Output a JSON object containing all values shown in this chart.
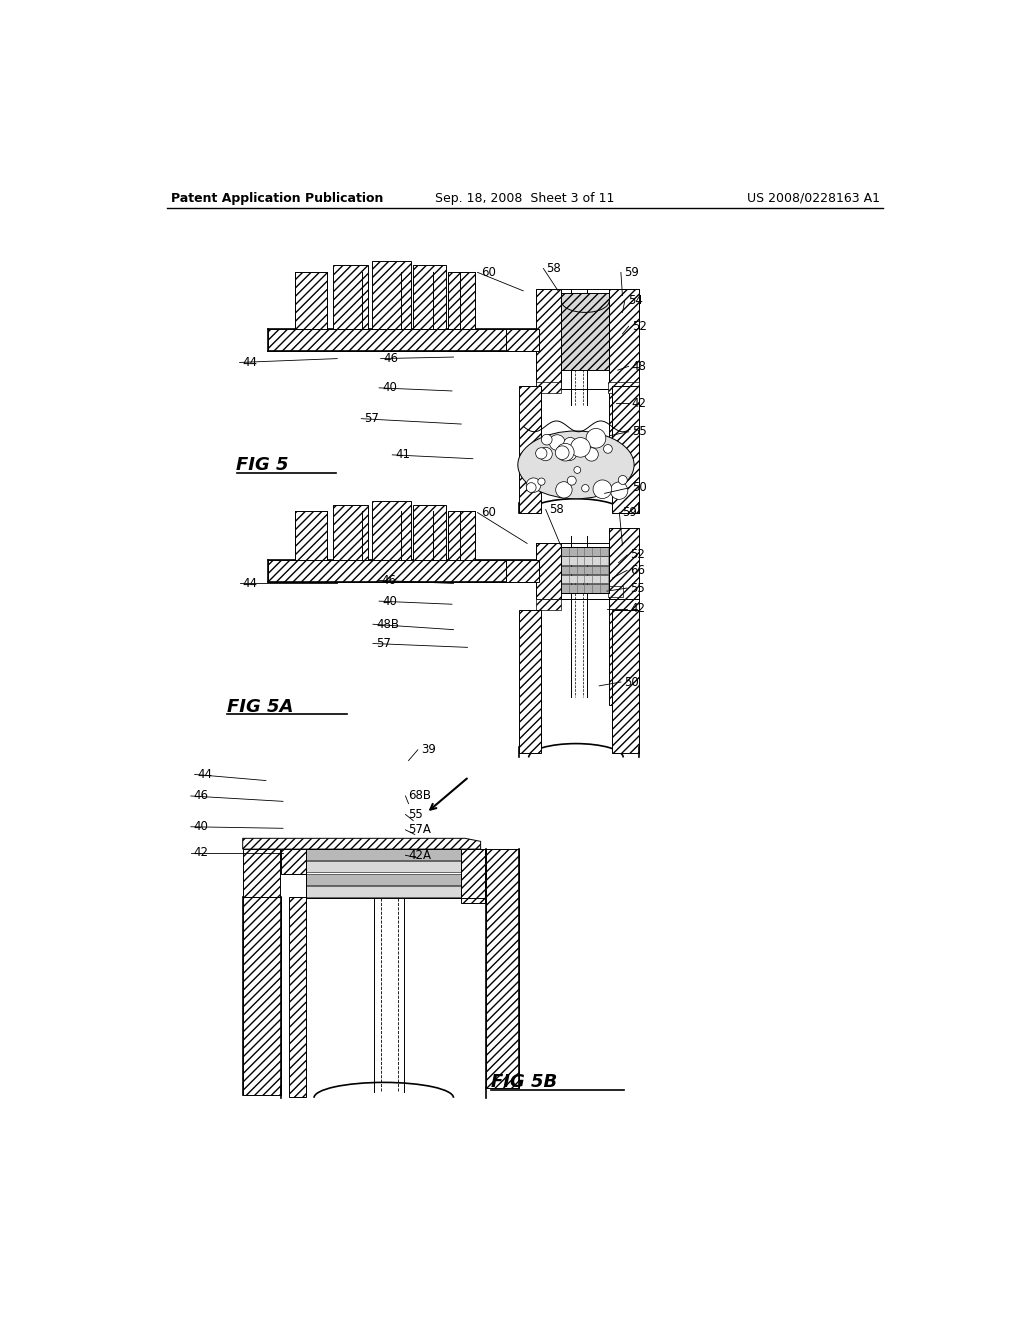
{
  "header_left": "Patent Application Publication",
  "header_center": "Sep. 18, 2008  Sheet 3 of 11",
  "header_right": "US 2008/0228163 A1",
  "background_color": "#ffffff",
  "fig5_label": "FIG 5",
  "fig5a_label": "FIG 5A",
  "fig5b_label": "FIG 5B",
  "fig5_refs": [
    [
      "44",
      148,
      265,
      270,
      260
    ],
    [
      "46",
      330,
      260,
      420,
      258
    ],
    [
      "60",
      455,
      148,
      510,
      172
    ],
    [
      "58",
      540,
      143,
      555,
      172
    ],
    [
      "59",
      640,
      148,
      638,
      178
    ],
    [
      "54",
      645,
      185,
      638,
      200
    ],
    [
      "52",
      650,
      218,
      638,
      228
    ],
    [
      "48",
      650,
      270,
      632,
      275
    ],
    [
      "40",
      328,
      298,
      418,
      302
    ],
    [
      "42",
      650,
      318,
      630,
      318
    ],
    [
      "57",
      305,
      338,
      430,
      345
    ],
    [
      "55",
      650,
      355,
      622,
      360
    ],
    [
      "41",
      345,
      385,
      445,
      390
    ],
    [
      "50",
      650,
      428,
      615,
      435
    ]
  ],
  "fig5a_refs": [
    [
      "44",
      148,
      552,
      270,
      552
    ],
    [
      "46",
      327,
      548,
      420,
      552
    ],
    [
      "60",
      455,
      460,
      515,
      500
    ],
    [
      "58",
      543,
      456,
      558,
      502
    ],
    [
      "59",
      638,
      460,
      638,
      502
    ],
    [
      "52",
      648,
      515,
      633,
      525
    ],
    [
      "66",
      648,
      535,
      625,
      545
    ],
    [
      "40",
      328,
      575,
      418,
      579
    ],
    [
      "55",
      648,
      558,
      618,
      562
    ],
    [
      "48B",
      320,
      605,
      420,
      612
    ],
    [
      "42",
      648,
      585,
      618,
      585
    ],
    [
      "57",
      320,
      630,
      438,
      635
    ],
    [
      "50",
      640,
      680,
      608,
      685
    ]
  ],
  "fig5b_refs": [
    [
      "44",
      90,
      800,
      178,
      808
    ],
    [
      "39",
      378,
      768,
      362,
      782
    ],
    [
      "46",
      85,
      828,
      200,
      835
    ],
    [
      "68B",
      362,
      828,
      362,
      838
    ],
    [
      "55",
      362,
      852,
      368,
      860
    ],
    [
      "40",
      85,
      868,
      200,
      870
    ],
    [
      "57A",
      362,
      872,
      370,
      878
    ],
    [
      "42",
      85,
      902,
      200,
      902
    ],
    [
      "42A",
      362,
      905,
      372,
      908
    ]
  ]
}
